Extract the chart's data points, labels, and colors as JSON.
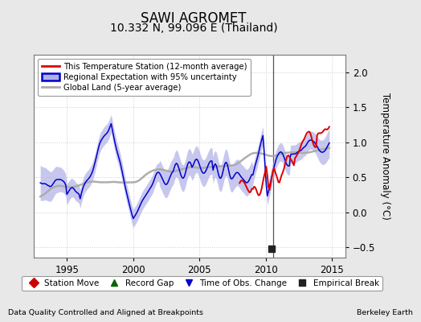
{
  "title": "SAWI AGROMET",
  "subtitle": "10.332 N, 99.096 E (Thailand)",
  "ylabel": "Temperature Anomaly (°C)",
  "xlabel_left": "Data Quality Controlled and Aligned at Breakpoints",
  "xlabel_right": "Berkeley Earth",
  "xlim": [
    1992.5,
    2016.0
  ],
  "ylim": [
    -0.65,
    2.25
  ],
  "yticks": [
    -0.5,
    0.0,
    0.5,
    1.0,
    1.5,
    2.0
  ],
  "xticks": [
    1995,
    2000,
    2005,
    2010,
    2015
  ],
  "bg_color": "#e8e8e8",
  "plot_bg_color": "#ffffff",
  "grid_color": "#cccccc",
  "red_line_color": "#dd0000",
  "blue_line_color": "#0000cc",
  "blue_fill_color": "#b0b0e8",
  "gray_line_color": "#aaaaaa",
  "vline_x": 2010.58,
  "vline_color": "#555555",
  "empirical_break_x": 2010.45,
  "empirical_break_y": -0.52,
  "legend_labels": [
    "This Temperature Station (12-month average)",
    "Regional Expectation with 95% uncertainty",
    "Global Land (5-year average)"
  ],
  "bottom_legend_labels": [
    "Station Move",
    "Record Gap",
    "Time of Obs. Change",
    "Empirical Break"
  ],
  "bottom_legend_colors": [
    "#cc0000",
    "#006600",
    "#0000cc",
    "#222222"
  ],
  "bottom_legend_markers": [
    "D",
    "^",
    "v",
    "s"
  ],
  "title_fontsize": 12,
  "subtitle_fontsize": 10,
  "tick_fontsize": 8.5,
  "label_fontsize": 8.5
}
